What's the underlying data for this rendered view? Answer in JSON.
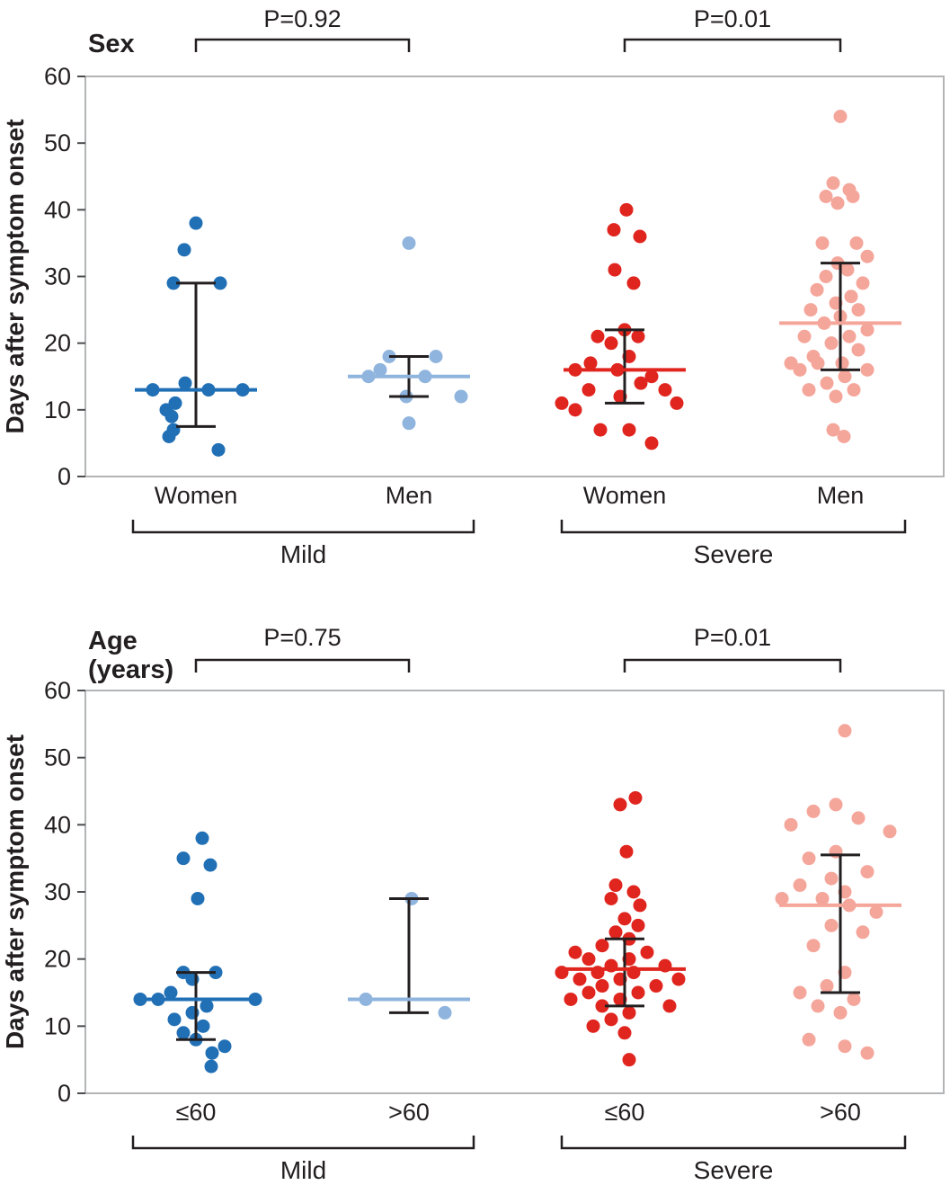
{
  "colors": {
    "mild_women": "#2170b6",
    "mild_men": "#8fb4dd",
    "severe_women": "#e0251f",
    "severe_men": "#f5a69b",
    "frame": "#b2b4b6",
    "tick": "#4d4d4f",
    "text": "#231f20"
  },
  "chart_data": [
    {
      "id": "sex",
      "type": "scatter",
      "title": "Sex",
      "title_lines": [
        "Sex"
      ],
      "ylabel": "Days after symptom onset",
      "xlabel": "",
      "ylim": [
        0,
        60
      ],
      "yticks": [
        0,
        10,
        20,
        30,
        40,
        50,
        60
      ],
      "grid": false,
      "comparisons": [
        {
          "label": "P=0.92",
          "from": 0,
          "to": 1
        },
        {
          "label": "P=0.01",
          "from": 2,
          "to": 3
        }
      ],
      "group_brackets": [
        {
          "label": "Mild",
          "from": 0,
          "to": 1
        },
        {
          "label": "Severe",
          "from": 2,
          "to": 3
        }
      ],
      "series": [
        {
          "name": "mild-women",
          "tick_label": "Women",
          "color_key": "mild_women",
          "median": 13,
          "whiskers": [
            7.5,
            29
          ],
          "points": [
            [
              0,
              38
            ],
            [
              -13,
              34
            ],
            [
              -25,
              29
            ],
            [
              27,
              29
            ],
            [
              -12,
              14
            ],
            [
              -48,
              13
            ],
            [
              14,
              13
            ],
            [
              52,
              13
            ],
            [
              -23,
              11
            ],
            [
              -33,
              10
            ],
            [
              -27,
              9
            ],
            [
              -25,
              7
            ],
            [
              -30,
              6
            ],
            [
              25,
              4
            ]
          ]
        },
        {
          "name": "mild-men",
          "tick_label": "Men",
          "color_key": "mild_men",
          "median": 15,
          "whiskers": [
            12,
            18
          ],
          "points": [
            [
              0,
              35
            ],
            [
              -22,
              18
            ],
            [
              30,
              18
            ],
            [
              -32,
              16
            ],
            [
              -45,
              15
            ],
            [
              18,
              15
            ],
            [
              -3,
              12
            ],
            [
              58,
              12
            ],
            [
              0,
              8
            ]
          ]
        },
        {
          "name": "severe-women",
          "tick_label": "Women",
          "color_key": "severe_women",
          "median": 16,
          "whiskers": [
            11,
            22
          ],
          "points": [
            [
              2,
              40
            ],
            [
              -12,
              37
            ],
            [
              17,
              36
            ],
            [
              -11,
              31
            ],
            [
              10,
              29
            ],
            [
              0,
              22
            ],
            [
              -30,
              21
            ],
            [
              15,
              21
            ],
            [
              -15,
              20
            ],
            [
              5,
              18
            ],
            [
              -38,
              17
            ],
            [
              -55,
              16
            ],
            [
              -8,
              16
            ],
            [
              30,
              15
            ],
            [
              18,
              14
            ],
            [
              -40,
              13
            ],
            [
              45,
              13
            ],
            [
              -5,
              12
            ],
            [
              -70,
              11
            ],
            [
              58,
              11
            ],
            [
              -55,
              10
            ],
            [
              -27,
              7
            ],
            [
              5,
              7
            ],
            [
              30,
              5
            ]
          ]
        },
        {
          "name": "severe-men",
          "tick_label": "Men",
          "color_key": "severe_men",
          "median": 23,
          "whiskers": [
            16,
            32
          ],
          "points": [
            [
              0,
              54
            ],
            [
              -8,
              44
            ],
            [
              10,
              43
            ],
            [
              -16,
              42
            ],
            [
              14,
              42
            ],
            [
              -3,
              41
            ],
            [
              -20,
              35
            ],
            [
              18,
              35
            ],
            [
              30,
              33
            ],
            [
              -3,
              32
            ],
            [
              8,
              31
            ],
            [
              -16,
              30
            ],
            [
              25,
              29
            ],
            [
              -26,
              28
            ],
            [
              12,
              27
            ],
            [
              -5,
              26
            ],
            [
              -33,
              25
            ],
            [
              20,
              25
            ],
            [
              0,
              24
            ],
            [
              -18,
              23
            ],
            [
              30,
              22
            ],
            [
              -40,
              21
            ],
            [
              10,
              21
            ],
            [
              -10,
              20
            ],
            [
              20,
              19
            ],
            [
              -30,
              18
            ],
            [
              -55,
              17
            ],
            [
              -25,
              17
            ],
            [
              2,
              17
            ],
            [
              -45,
              16
            ],
            [
              30,
              16
            ],
            [
              5,
              15
            ],
            [
              -15,
              14
            ],
            [
              -35,
              13
            ],
            [
              15,
              13
            ],
            [
              -5,
              12
            ],
            [
              -8,
              7
            ],
            [
              4,
              6
            ]
          ]
        }
      ]
    },
    {
      "id": "age",
      "type": "scatter",
      "title": "Age (years)",
      "title_lines": [
        "Age",
        "(years)"
      ],
      "ylabel": "Days after symptom onset",
      "xlabel": "",
      "ylim": [
        0,
        60
      ],
      "yticks": [
        0,
        10,
        20,
        30,
        40,
        50,
        60
      ],
      "grid": false,
      "comparisons": [
        {
          "label": "P=0.75",
          "from": 0,
          "to": 1
        },
        {
          "label": "P=0.01",
          "from": 2,
          "to": 3
        }
      ],
      "group_brackets": [
        {
          "label": "Mild",
          "from": 0,
          "to": 1
        },
        {
          "label": "Severe",
          "from": 2,
          "to": 3
        }
      ],
      "series": [
        {
          "name": "mild-age-le-60",
          "tick_label": "≤60",
          "color_key": "mild_women",
          "median": 14,
          "whiskers": [
            8,
            18
          ],
          "points": [
            [
              7,
              38
            ],
            [
              -14,
              35
            ],
            [
              16,
              34
            ],
            [
              2,
              29
            ],
            [
              -14,
              18
            ],
            [
              22,
              18
            ],
            [
              -4,
              17
            ],
            [
              -28,
              15
            ],
            [
              -62,
              14
            ],
            [
              -42,
              14
            ],
            [
              66,
              14
            ],
            [
              12,
              13
            ],
            [
              -4,
              12
            ],
            [
              -24,
              11
            ],
            [
              8,
              10
            ],
            [
              -14,
              9
            ],
            [
              0,
              8
            ],
            [
              32,
              7
            ],
            [
              18,
              6
            ],
            [
              17,
              4
            ]
          ]
        },
        {
          "name": "mild-age-gt-60",
          "tick_label": ">60",
          "color_key": "mild_men",
          "median": 14,
          "whiskers": [
            12,
            29
          ],
          "points": [
            [
              3,
              29
            ],
            [
              -48,
              14
            ],
            [
              40,
              12
            ]
          ]
        },
        {
          "name": "severe-age-le-60",
          "tick_label": "≤60",
          "color_key": "severe_women",
          "median": 18.5,
          "whiskers": [
            13,
            23
          ],
          "points": [
            [
              12,
              44
            ],
            [
              -5,
              43
            ],
            [
              2,
              36
            ],
            [
              -10,
              31
            ],
            [
              10,
              30
            ],
            [
              -15,
              29
            ],
            [
              17,
              28
            ],
            [
              0,
              26
            ],
            [
              15,
              25
            ],
            [
              -10,
              24
            ],
            [
              5,
              23
            ],
            [
              -25,
              22
            ],
            [
              -55,
              21
            ],
            [
              25,
              21
            ],
            [
              -40,
              20
            ],
            [
              5,
              20
            ],
            [
              -15,
              19
            ],
            [
              45,
              19
            ],
            [
              -70,
              18
            ],
            [
              -30,
              18
            ],
            [
              10,
              18
            ],
            [
              -50,
              17
            ],
            [
              -5,
              17
            ],
            [
              60,
              17
            ],
            [
              -25,
              16
            ],
            [
              35,
              16
            ],
            [
              -40,
              15
            ],
            [
              15,
              15
            ],
            [
              -60,
              14
            ],
            [
              -5,
              14
            ],
            [
              -25,
              13
            ],
            [
              50,
              13
            ],
            [
              5,
              12
            ],
            [
              -15,
              11
            ],
            [
              -35,
              10
            ],
            [
              0,
              9
            ],
            [
              5,
              5
            ]
          ]
        },
        {
          "name": "severe-age-gt-60",
          "tick_label": ">60",
          "color_key": "severe_men",
          "median": 28,
          "whiskers": [
            15,
            35.5
          ],
          "points": [
            [
              5,
              54
            ],
            [
              -5,
              43
            ],
            [
              -30,
              42
            ],
            [
              20,
              41
            ],
            [
              -55,
              40
            ],
            [
              55,
              39
            ],
            [
              -5,
              36
            ],
            [
              -35,
              35
            ],
            [
              30,
              33
            ],
            [
              -10,
              32
            ],
            [
              -45,
              31
            ],
            [
              5,
              30
            ],
            [
              -65,
              29
            ],
            [
              -20,
              29
            ],
            [
              10,
              28
            ],
            [
              40,
              27
            ],
            [
              -10,
              25
            ],
            [
              25,
              24
            ],
            [
              -30,
              22
            ],
            [
              5,
              18
            ],
            [
              -15,
              16
            ],
            [
              -45,
              15
            ],
            [
              15,
              14
            ],
            [
              -25,
              13
            ],
            [
              0,
              12
            ],
            [
              -35,
              8
            ],
            [
              5,
              7
            ],
            [
              30,
              6
            ]
          ]
        }
      ]
    }
  ]
}
